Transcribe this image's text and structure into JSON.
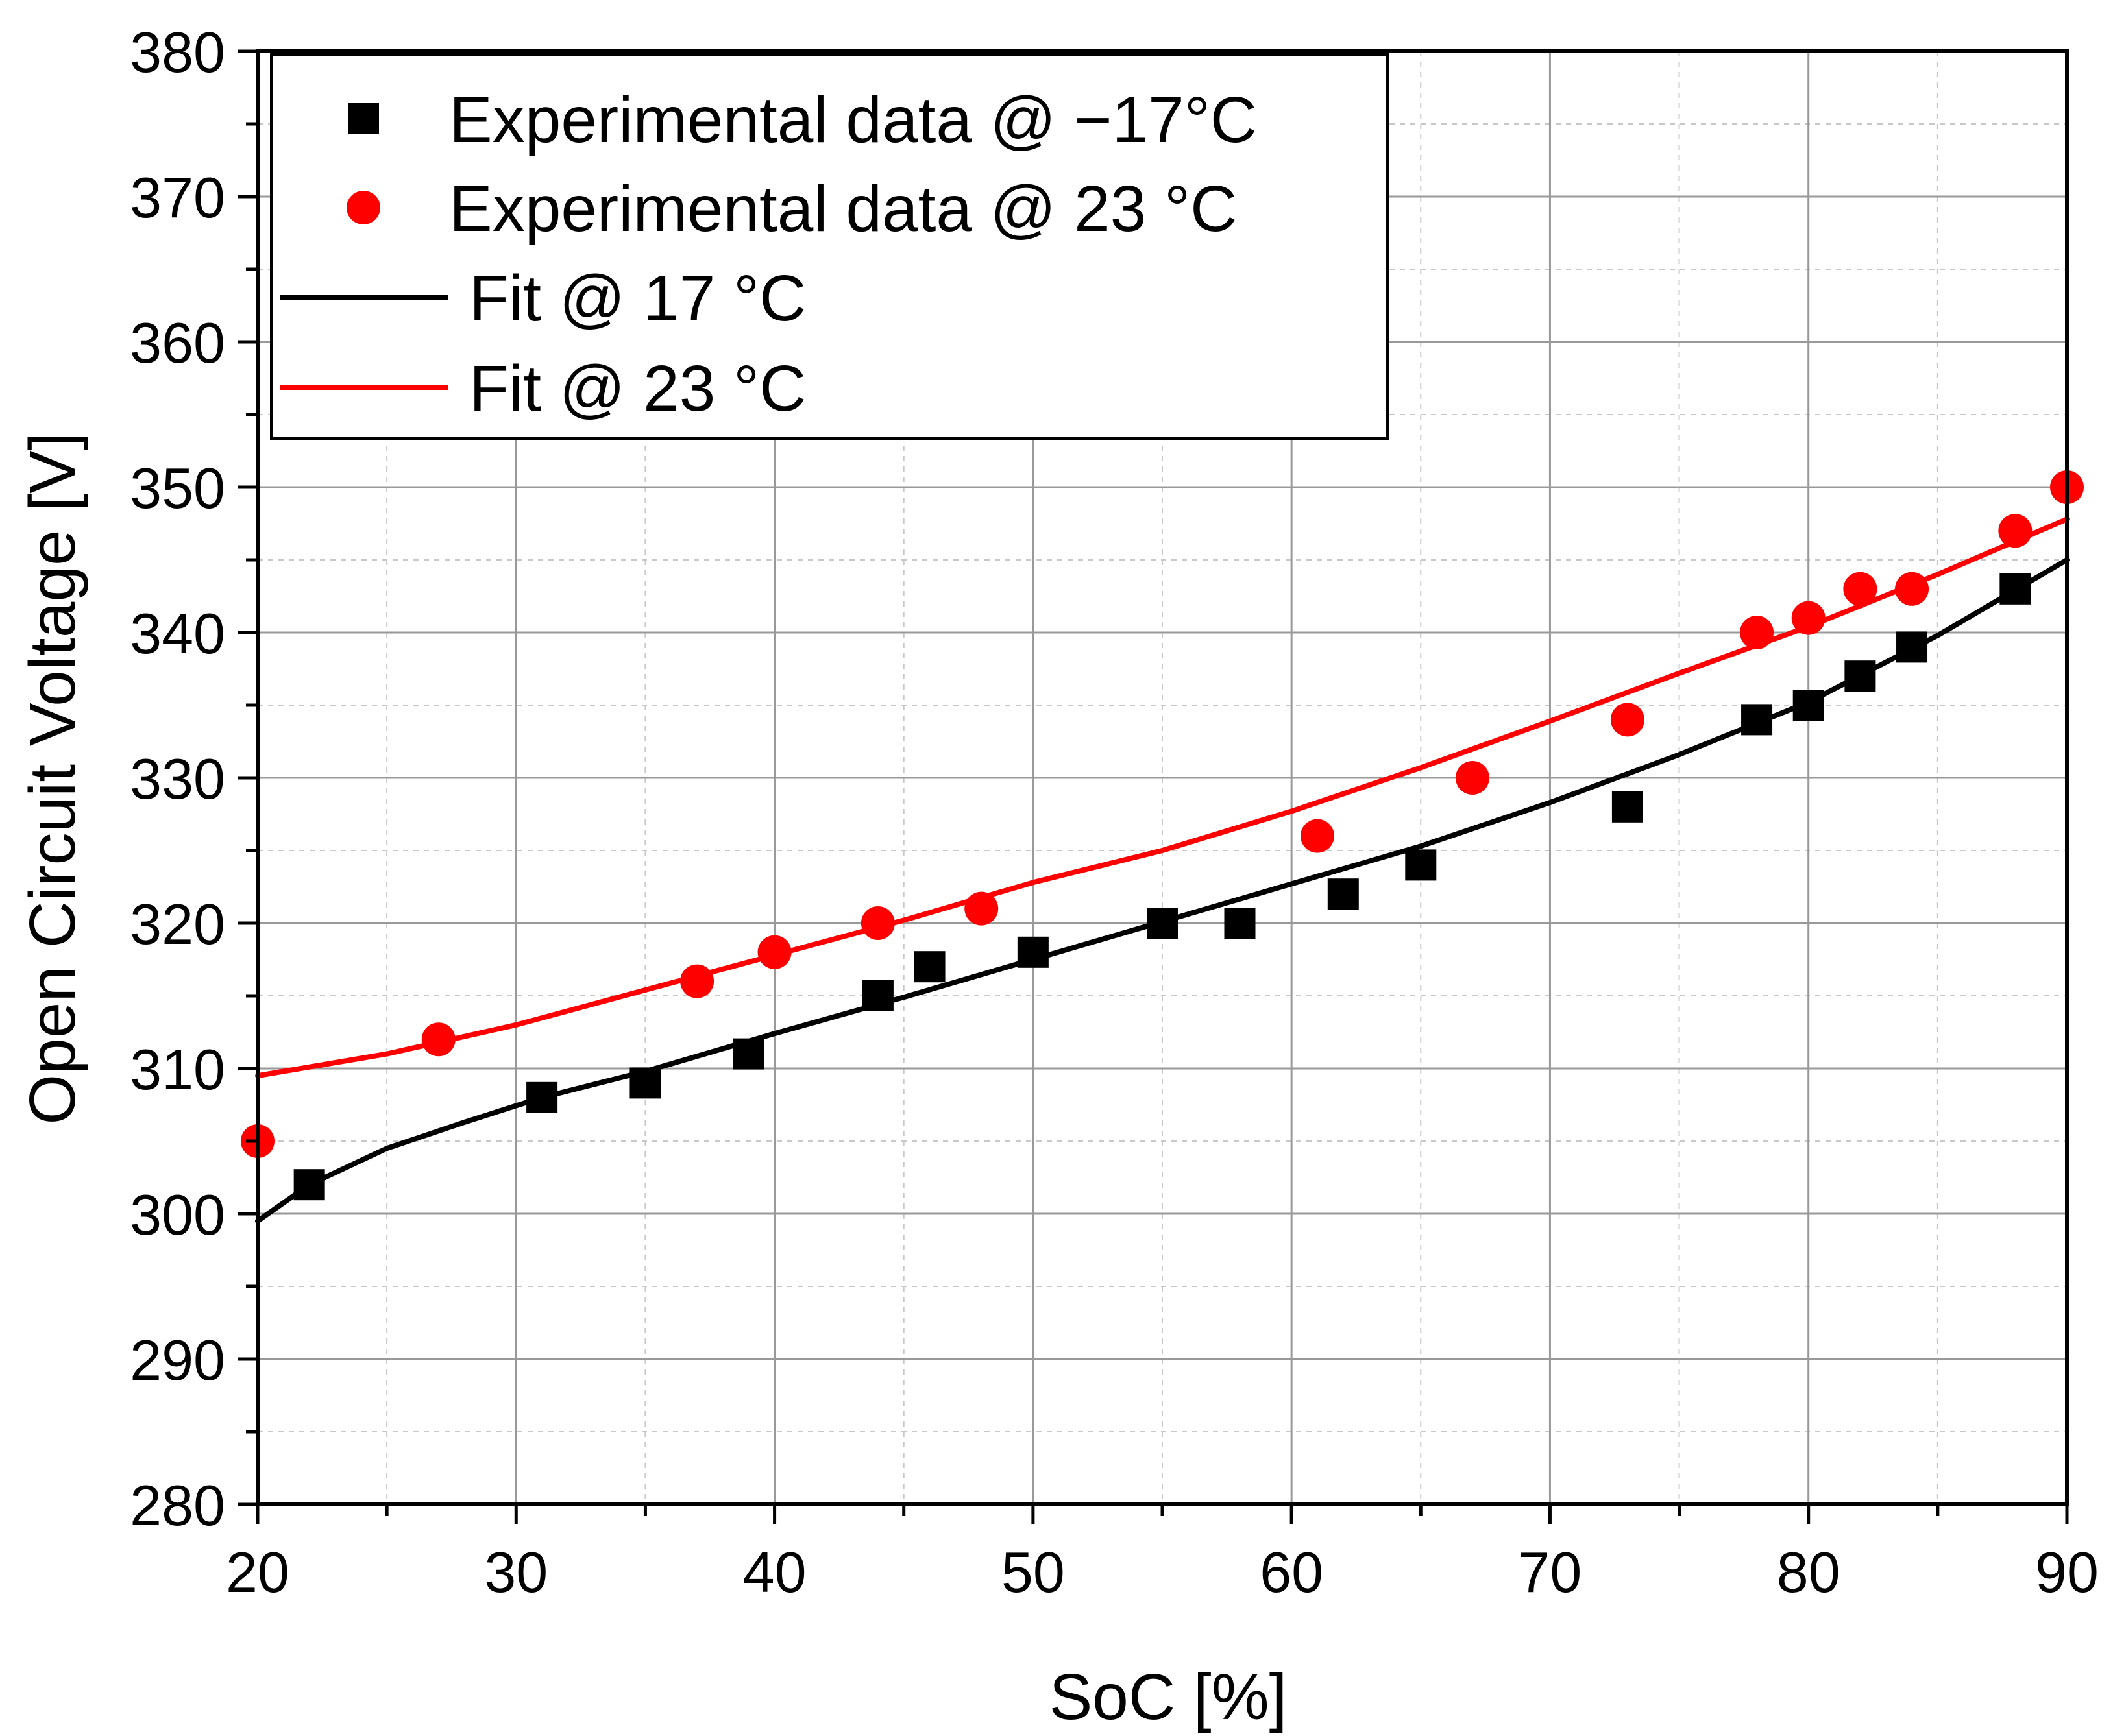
{
  "chart_data": {
    "type": "scatter",
    "title": "",
    "xlabel": "SoC [%]",
    "ylabel": "Open Circuit Voltage [V]",
    "xlim": [
      20,
      90
    ],
    "ylim": [
      280,
      380
    ],
    "xticks": [
      "20",
      "30",
      "40",
      "50",
      "60",
      "70",
      "80",
      "90"
    ],
    "yticks": [
      "280",
      "290",
      "300",
      "310",
      "320",
      "330",
      "340",
      "350",
      "360",
      "370",
      "380"
    ],
    "grid": true,
    "legend_position": "top-left",
    "colors": {
      "series_black": "#000000",
      "series_red": "#ff0000"
    },
    "series": [
      {
        "name": "Experimental data @ −17°C",
        "kind": "scatter",
        "marker": "square",
        "color": "#000000",
        "x": [
          22,
          31,
          35,
          39,
          44,
          46,
          50,
          55,
          58,
          62,
          65,
          73,
          78,
          80,
          82,
          84,
          88
        ],
        "y": [
          302,
          308,
          309,
          311,
          315,
          317,
          318,
          320,
          320,
          322,
          324,
          328,
          334,
          335,
          337,
          339,
          343
        ]
      },
      {
        "name": "Experimental data @ 23 °C",
        "kind": "scatter",
        "marker": "circle",
        "color": "#ff0000",
        "x": [
          20,
          27,
          37,
          40,
          44,
          48,
          61,
          67,
          73,
          78,
          80,
          82,
          84,
          88,
          90
        ],
        "y": [
          305,
          312,
          316,
          318,
          320,
          321,
          326,
          330,
          334,
          340,
          341,
          343,
          343,
          347,
          350
        ]
      },
      {
        "name": "Fit @ 17 °C",
        "kind": "line",
        "color": "#000000",
        "x": [
          20,
          22,
          25,
          28,
          31,
          35,
          40,
          45,
          50,
          55,
          60,
          65,
          70,
          75,
          80,
          85,
          90
        ],
        "y": [
          299.5,
          302,
          304.5,
          306.3,
          308,
          309.8,
          312.4,
          314.9,
          317.5,
          320.1,
          322.7,
          325.3,
          328.3,
          331.6,
          335.2,
          339.8,
          345
        ]
      },
      {
        "name": "Fit @ 23 °C",
        "kind": "line",
        "color": "#ff0000",
        "x": [
          20,
          25,
          30,
          35,
          40,
          45,
          50,
          55,
          60,
          65,
          70,
          75,
          80,
          85,
          90
        ],
        "y": [
          309.5,
          311,
          313,
          315.4,
          317.8,
          320.2,
          322.8,
          325,
          327.7,
          330.7,
          333.9,
          337.2,
          340.4,
          344,
          347.8
        ]
      }
    ]
  }
}
